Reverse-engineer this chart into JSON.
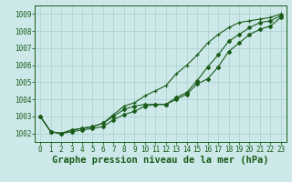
{
  "x": [
    0,
    1,
    2,
    3,
    4,
    5,
    6,
    7,
    8,
    9,
    10,
    11,
    12,
    13,
    14,
    15,
    16,
    17,
    18,
    19,
    20,
    21,
    22,
    23
  ],
  "line_main": [
    1003.0,
    1002.1,
    1002.0,
    1002.2,
    1002.3,
    1002.4,
    1002.6,
    1003.0,
    1003.4,
    1003.6,
    1003.7,
    1003.7,
    1003.7,
    1004.1,
    1004.4,
    1005.1,
    1005.9,
    1006.6,
    1007.4,
    1007.8,
    1008.2,
    1008.5,
    1008.6,
    1008.9
  ],
  "line_upper": [
    1003.0,
    1002.1,
    1002.0,
    1002.2,
    1002.3,
    1002.4,
    1002.6,
    1003.1,
    1003.6,
    1003.8,
    1004.2,
    1004.5,
    1004.8,
    1005.5,
    1006.0,
    1006.6,
    1007.3,
    1007.8,
    1008.2,
    1008.5,
    1008.6,
    1008.7,
    1008.8,
    1009.0
  ],
  "line_lower": [
    1003.0,
    1002.1,
    1002.0,
    1002.1,
    1002.2,
    1002.3,
    1002.4,
    1002.8,
    1003.1,
    1003.3,
    1003.6,
    1003.7,
    1003.7,
    1004.0,
    1004.3,
    1004.9,
    1005.2,
    1005.9,
    1006.8,
    1007.3,
    1007.8,
    1008.1,
    1008.3,
    1008.8
  ],
  "xlabel": "Graphe pression niveau de la mer (hPa)",
  "ylim": [
    1001.5,
    1009.5
  ],
  "xlim": [
    -0.5,
    23.5
  ],
  "yticks": [
    1002,
    1003,
    1004,
    1005,
    1006,
    1007,
    1008,
    1009
  ],
  "xticks": [
    0,
    1,
    2,
    3,
    4,
    5,
    6,
    7,
    8,
    9,
    10,
    11,
    12,
    13,
    14,
    15,
    16,
    17,
    18,
    19,
    20,
    21,
    22,
    23
  ],
  "line_color": "#1a5c1a",
  "bg_color": "#cce8e8",
  "grid_major_color": "#aacfcf",
  "grid_minor_color": "#bbdada",
  "xlabel_color": "#1a5c1a",
  "xlabel_fontsize": 7.5,
  "tick_fontsize": 5.5
}
